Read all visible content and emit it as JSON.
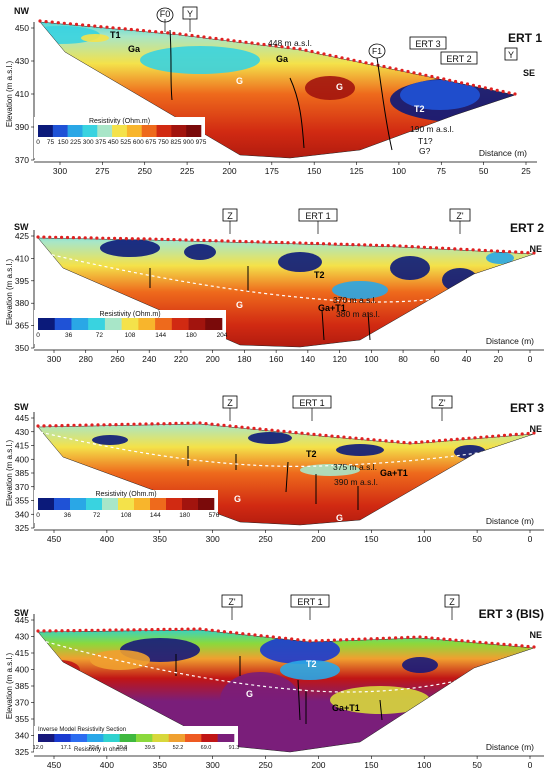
{
  "colors": {
    "cold": [
      "#0b1a7a",
      "#1f52d6",
      "#2aa7e6",
      "#39d3e0",
      "#a8e6c8"
    ],
    "warm": [
      "#f4e24a",
      "#f8b52c",
      "#ee6a1c",
      "#d12a12",
      "#a2140e",
      "#7a0a0a"
    ],
    "ert3bis": [
      "#17187a",
      "#1a3ad0",
      "#2b6cf0",
      "#29a7e8",
      "#30d2cf",
      "#3fb83f",
      "#8bd93c",
      "#d8d83c",
      "#f0a030",
      "#ee5a22",
      "#c01515",
      "#7a1e7a"
    ],
    "electrodes": "#e02020"
  },
  "axis": {
    "elevation": "Elevation (m a.s.l.)",
    "distance": "Distance (m)"
  },
  "panels": [
    {
      "title": "ERT 1",
      "left_dir": "NW",
      "right_dir": "SE",
      "top_labels": [
        {
          "text": "F0",
          "style": "circle"
        },
        {
          "text": "Y",
          "style": "box"
        }
      ],
      "right_labels": [
        {
          "text": "ERT 3",
          "style": "box"
        },
        {
          "text": "ERT 2",
          "style": "box"
        },
        {
          "text": "Y",
          "style": "box"
        }
      ],
      "fault_label": "F1",
      "y_ticks": [
        "450",
        "430",
        "410",
        "390",
        "370"
      ],
      "x_ticks": [
        "300",
        "275",
        "250",
        "225",
        "200",
        "175",
        "150",
        "125",
        "100",
        "75",
        "50",
        "25"
      ],
      "colorbar_title": "Resistivity (Ohm.m)",
      "colorbar_ticks": [
        "0",
        "75",
        "150",
        "225",
        "300",
        "375",
        "450",
        "525",
        "600",
        "675",
        "750",
        "825",
        "900",
        "975"
      ],
      "annotations": [
        "448 m a.s.l.",
        "190 m a.s.l.",
        "T1?",
        "G?"
      ],
      "units": [
        "T1",
        "Ga",
        "Ga",
        "G",
        "G",
        "T2"
      ]
    },
    {
      "title": "ERT 2",
      "left_dir": "SW",
      "right_dir": "NE",
      "top_labels": [
        {
          "text": "Z",
          "style": "box"
        },
        {
          "text": "ERT 1",
          "style": "box"
        },
        {
          "text": "Z'",
          "style": "box"
        }
      ],
      "y_ticks": [
        "425",
        "410",
        "395",
        "380",
        "365",
        "350"
      ],
      "x_ticks": [
        "300",
        "280",
        "260",
        "240",
        "220",
        "200",
        "180",
        "160",
        "140",
        "120",
        "100",
        "80",
        "60",
        "40",
        "20",
        "0"
      ],
      "colorbar_title": "Resistivity (Ohm.m)",
      "colorbar_ticks": [
        "0",
        "36",
        "72",
        "108",
        "144",
        "180",
        "204"
      ],
      "annotations": [
        "370 m a.s.l.",
        "380 m a.s.l."
      ],
      "units": [
        "T2",
        "G",
        "Ga+T1"
      ]
    },
    {
      "title": "ERT 3",
      "left_dir": "SW",
      "right_dir": "NE",
      "top_labels": [
        {
          "text": "Z",
          "style": "box"
        },
        {
          "text": "ERT 1",
          "style": "box"
        },
        {
          "text": "Z'",
          "style": "box"
        }
      ],
      "y_ticks": [
        "445",
        "430",
        "415",
        "400",
        "385",
        "370",
        "355",
        "340",
        "325"
      ],
      "x_ticks": [
        "450",
        "400",
        "350",
        "300",
        "250",
        "200",
        "150",
        "100",
        "50",
        "0"
      ],
      "colorbar_title": "Resistivity (Ohm.m)",
      "colorbar_ticks": [
        "0",
        "36",
        "72",
        "108",
        "144",
        "180",
        "576"
      ],
      "annotations": [
        "375 m a.s.l.",
        "390 m a.s.l."
      ],
      "units": [
        "T2",
        "Ga+T1",
        "G",
        "G"
      ]
    },
    {
      "title": "ERT 3 (BIS)",
      "left_dir": "SW",
      "right_dir": "NE",
      "top_labels": [
        {
          "text": "Z'",
          "style": "box"
        },
        {
          "text": "ERT 1",
          "style": "box"
        },
        {
          "text": "Z",
          "style": "box"
        }
      ],
      "y_ticks": [
        "445",
        "430",
        "415",
        "400",
        "385",
        "370",
        "355",
        "340",
        "325"
      ],
      "x_ticks": [
        "450",
        "400",
        "350",
        "300",
        "250",
        "200",
        "150",
        "100",
        "50",
        "0"
      ],
      "colorbar_title": "Inverse Model Resistivity Section",
      "colorbar_sub": "Resistivity in ohm.m",
      "colorbar_ticks": [
        "12.0",
        "17.1",
        "22.6",
        "29.8",
        "39.5",
        "52.2",
        "69.0",
        "91.3"
      ],
      "units": [
        "T2",
        "G",
        "Ga+T1"
      ]
    }
  ]
}
